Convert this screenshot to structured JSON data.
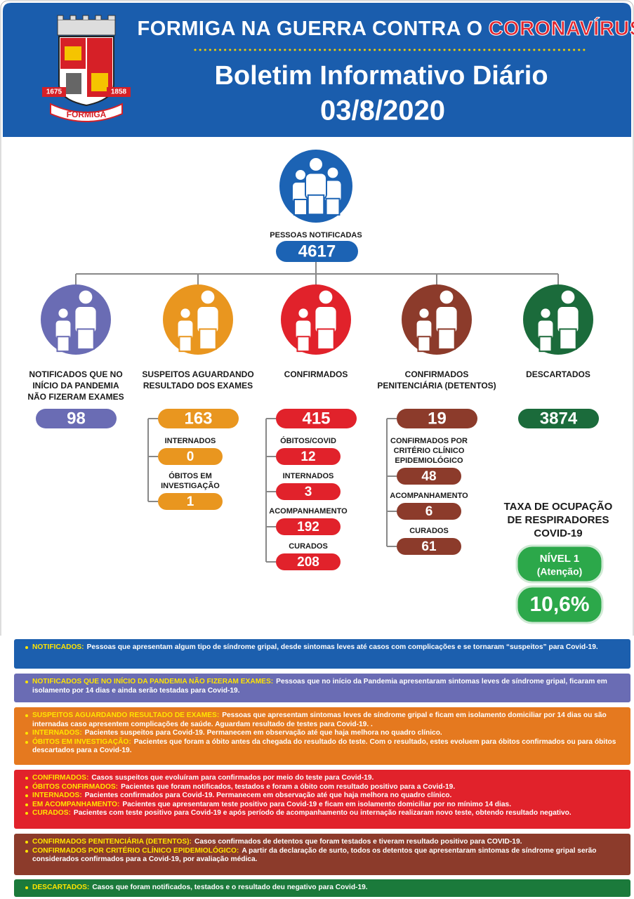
{
  "header": {
    "title": "FORMIGA NA GUERRA CONTRA O",
    "title_highlight": "CORONAVÍRUS",
    "subtitle": "Boletim Informativo Diário",
    "date": "03/8/2020",
    "logo": {
      "left_year": "1675",
      "right_year": "1858",
      "name": "FORMIGA"
    }
  },
  "total": {
    "label": "PESSOAS NOTIFICADAS",
    "value": 4617,
    "color": "#1c63b4"
  },
  "columns": [
    {
      "label": [
        "NOTIFICADOS QUE NO",
        "INÍCIO DA PANDEMIA",
        "NÃO FIZERAM EXAMES"
      ],
      "value": 98,
      "color": "#6a6cb4",
      "items": []
    },
    {
      "label": [
        "SUSPEITOS AGUARDANDO",
        "RESULTADO DOS EXAMES"
      ],
      "value": 163,
      "color": "#e9961f",
      "items": [
        {
          "label": [
            "INTERNADOS"
          ],
          "value": 0
        },
        {
          "label": [
            "ÓBITOS EM",
            "INVESTIGAÇÃO"
          ],
          "value": 1
        }
      ]
    },
    {
      "label": [
        "CONFIRMADOS"
      ],
      "value": 415,
      "color": "#e1222b",
      "items": [
        {
          "label": [
            "ÓBITOS/COVID"
          ],
          "value": 12
        },
        {
          "label": [
            "INTERNADOS"
          ],
          "value": 3
        },
        {
          "label": [
            "ACOMPANHAMENTO"
          ],
          "value": 192
        },
        {
          "label": [
            "CURADOS"
          ],
          "value": 208
        }
      ]
    },
    {
      "label": [
        "CONFIRMADOS",
        "PENITENCIÁRIA (DETENTOS)"
      ],
      "value": 19,
      "color": "#8c3b2b",
      "items": [
        {
          "label": [
            "CONFIRMADOS POR",
            "CRITÉRIO CLÍNICO",
            "EPIDEMIOLÓGICO"
          ],
          "value": 48
        },
        {
          "label": [
            "ACOMPANHAMENTO"
          ],
          "value": 6
        },
        {
          "label": [
            "CURADOS"
          ],
          "value": 61
        }
      ]
    },
    {
      "label": [
        "DESCARTADOS"
      ],
      "value": 3874,
      "color": "#1b6b3b",
      "items": []
    }
  ],
  "ventilators": {
    "title": [
      "TAXA DE OCUPAÇÃO",
      "DE RESPIRADORES",
      "COVID-19"
    ],
    "level": "NÍVEL 1",
    "level_note": "(Atenção)",
    "rate": "10,6%",
    "color": "#2ca84a"
  },
  "definitions": [
    {
      "color": "#1c5fae",
      "items": [
        {
          "term": "NOTIFICADOS:",
          "text": "Pessoas que apresentam algum tipo de síndrome gripal, desde sintomas leves até casos com complicações e se tornaram “suspeitos” para Covid-19."
        }
      ]
    },
    {
      "color": "#6a6cb4",
      "items": [
        {
          "term": "NOTIFICADOS QUE NO INÍCIO DA PANDEMIA NÃO FIZERAM EXAMES:",
          "text": "Pessoas que no início da Pandemia apresentaram sintomas leves de síndrome gripal, ficaram em isolamento por 14 dias e ainda serão testadas para Covid-19."
        }
      ]
    },
    {
      "color": "#e5791f",
      "items": [
        {
          "term": "SUSPEITOS AGUARDANDO RESULTADO DE EXAMES:",
          "text": "Pessoas que apresentam sintomas leves de síndrome gripal e ficam em isolamento domiciliar por 14 dias ou são internadas caso apresentem complicações de saúde. Aguardam resultado de testes para Covid-19. ."
        },
        {
          "term": "INTERNADOS:",
          "text": "Pacientes suspeitos para Covid-19. Permanecem em observação até que haja melhora no quadro clínico."
        },
        {
          "term": "ÓBITOS EM INVESTIGAÇÃO:",
          "text": "Pacientes que foram a óbito antes da chegada do resultado do teste. Com o resultado, estes evoluem para óbitos confirmados ou para óbitos descartados para a Covid-19."
        }
      ]
    },
    {
      "color": "#e1222b",
      "items": [
        {
          "term": "CONFIRMADOS:",
          "text": "Casos suspeitos que evoluíram para confirmados por meio do teste para Covid-19."
        },
        {
          "term": "ÓBITOS CONFIRMADOS:",
          "text": "Pacientes que foram notificados, testados e foram a óbito com resultado positivo para a Covid-19."
        },
        {
          "term": "INTERNADOS:",
          "text": "Pacientes confirmados para Covid-19. Permanecem em observação até que haja melhora no quadro clínico."
        },
        {
          "term": "EM ACOMPANHAMENTO:",
          "text": "Pacientes que apresentaram teste positivo para Covid-19 e ficam em isolamento domiciliar por no mínimo 14 dias."
        },
        {
          "term": "CURADOS:",
          "text": "Pacientes com teste positivo para Covid-19 e após período de acompanhamento ou internação realizaram novo teste, obtendo resultado negativo."
        }
      ]
    },
    {
      "color": "#8c3b2b",
      "items": [
        {
          "term": "CONFIRMADOS PENITENCIÁRIA (DETENTOS):",
          "text": "Casos confirmados de detentos que foram testados e tiveram resultado positivo para COVID-19."
        },
        {
          "term": "CONFIRMADOS POR CRITÉRIO CLÍNICO EPIDEMIOLÓGICO:",
          "text": "A partir da declaração de surto, todos os detentos que apresentaram sintomas de síndrome gripal serão considerados confirmados para a Covid-19, por avaliação médica."
        }
      ]
    },
    {
      "color": "#1b7a3b",
      "items": [
        {
          "term": "DESCARTADOS:",
          "text": "Casos que foram notificados, testados e o resultado deu negativo para Covid-19."
        }
      ]
    }
  ]
}
